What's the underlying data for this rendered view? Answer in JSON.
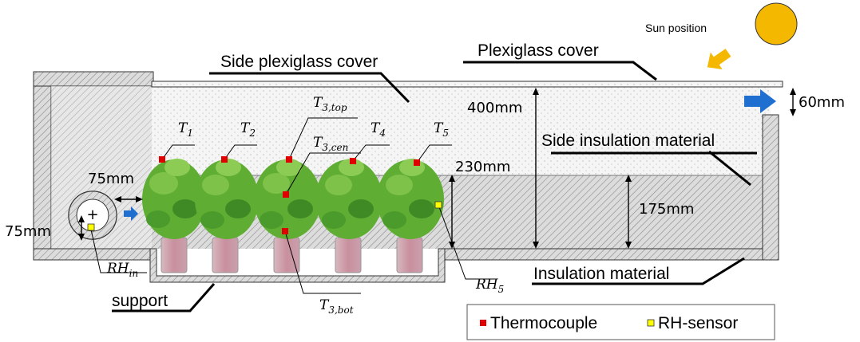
{
  "labels": {
    "sun_position": "Sun position",
    "side_plexiglass_cover": "Side plexiglass cover",
    "plexiglass_cover": "Plexiglass cover",
    "side_insulation_material": "Side insulation material",
    "insulation_material": "Insulation material",
    "support": "support"
  },
  "dimensions": {
    "d400": "400mm",
    "d60": "60mm",
    "d230": "230mm",
    "d175": "175mm",
    "d75_top": "75mm",
    "d75_left": "75mm"
  },
  "sensors": {
    "t1_base": "T",
    "t1_sub": "1",
    "t2_base": "T",
    "t2_sub": "2",
    "t3top_base": "T",
    "t3top_sub": "3,top",
    "t3cen_base": "T",
    "t3cen_sub": "3,cen",
    "t3bot_base": "T",
    "t3bot_sub": "3,bot",
    "t4_base": "T",
    "t4_sub": "4",
    "t5_base": "T",
    "t5_sub": "5",
    "rhin_base": "RH",
    "rhin_sub": "in",
    "rh5_base": "RH",
    "rh5_sub": "5"
  },
  "legend": {
    "thermocouple": "Thermocouple",
    "rh_sensor": "RH-sensor"
  },
  "colors": {
    "thermocouple": "#e00000",
    "rh_sensor": "#ffff00",
    "sun": "#f5b800",
    "flow_arrow": "#1f6fd0"
  }
}
